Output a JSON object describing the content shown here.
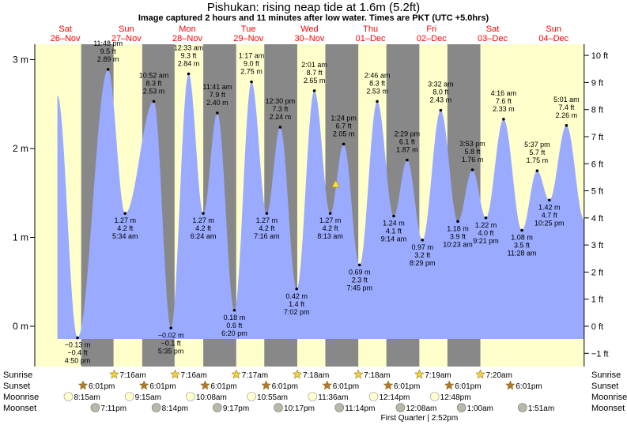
{
  "title": "Pishukan: rising  neap tide at 1.6m (5.2ft)",
  "subtitle": "Image captured 2 hours and 11 minutes after low water. Times are PKT (UTC +5.0hrs)",
  "colors": {
    "day_bg": "#ffffcc",
    "night_bg": "#888888",
    "water": "#99aaff",
    "day_label": "#ff0000",
    "marker": "#f0e040"
  },
  "chart_data": {
    "type": "area",
    "y_left_unit": "m",
    "y_right_unit": "ft",
    "y_left_ticks": [
      {
        "v": 0,
        "label": "0 m"
      },
      {
        "v": 1,
        "label": "1 m"
      },
      {
        "v": 2,
        "label": "2 m"
      },
      {
        "v": 3,
        "label": "3 m"
      }
    ],
    "y_right_ticks": [
      {
        "v": -1,
        "label": "−1 ft"
      },
      {
        "v": 0,
        "label": "0 ft"
      },
      {
        "v": 1,
        "label": "1 ft"
      },
      {
        "v": 2,
        "label": "2 ft"
      },
      {
        "v": 3,
        "label": "3 ft"
      },
      {
        "v": 4,
        "label": "4 ft"
      },
      {
        "v": 5,
        "label": "5 ft"
      },
      {
        "v": 6,
        "label": "6 ft"
      },
      {
        "v": 7,
        "label": "7 ft"
      },
      {
        "v": 8,
        "label": "8 ft"
      },
      {
        "v": 9,
        "label": "9 ft"
      },
      {
        "v": 10,
        "label": "10 ft"
      }
    ],
    "days": [
      {
        "dow": "Sat",
        "date": "26–Nov",
        "mid": 0.5
      },
      {
        "dow": "Sun",
        "date": "27–Nov",
        "mid": 1.5
      },
      {
        "dow": "Mon",
        "date": "28–Nov",
        "mid": 2.5
      },
      {
        "dow": "Tue",
        "date": "29–Nov",
        "mid": 3.5
      },
      {
        "dow": "Wed",
        "date": "30–Nov",
        "mid": 4.5
      },
      {
        "dow": "Thu",
        "date": "01–Dec",
        "mid": 5.5
      },
      {
        "dow": "Fri",
        "date": "02–Dec",
        "mid": 6.5
      },
      {
        "dow": "Sat",
        "date": "03–Dec",
        "mid": 7.5
      },
      {
        "dow": "Sun",
        "date": "04–Dec",
        "mid": 8.5
      }
    ],
    "nights": [
      [
        0.76,
        1.29
      ],
      [
        1.76,
        2.29
      ],
      [
        2.76,
        3.3
      ],
      [
        3.76,
        4.3
      ],
      [
        4.76,
        5.3
      ],
      [
        5.76,
        6.3
      ],
      [
        6.76,
        7.3
      ]
    ],
    "extremes": [
      {
        "t": 0.7,
        "m": -0.13,
        "lines": [
          "−0.13 m",
          "−0.4 ft",
          "4:50 pm"
        ],
        "pos": "below"
      },
      {
        "t": 1.2,
        "m": 2.89,
        "lines": [
          "11:48 pm",
          "9.5 ft",
          "2.89 m"
        ],
        "pos": "above"
      },
      {
        "t": 1.48,
        "m": 1.27,
        "lines": [
          "1.27 m",
          "4.2 ft",
          "5:34 am"
        ],
        "pos": "below"
      },
      {
        "t": 1.95,
        "m": 2.53,
        "lines": [
          "10:52 am",
          "8.3 ft",
          "2.53 m"
        ],
        "pos": "above"
      },
      {
        "t": 2.23,
        "m": -0.02,
        "lines": [
          "−0.02 m",
          "−0.1 ft",
          "5:35 pm"
        ],
        "pos": "below"
      },
      {
        "t": 2.52,
        "m": 2.84,
        "lines": [
          "12:33 am",
          "9.3 ft",
          "2.84 m"
        ],
        "pos": "above"
      },
      {
        "t": 2.76,
        "m": 1.27,
        "lines": [
          "1.27 m",
          "4.2 ft",
          "6:24 am"
        ],
        "pos": "below"
      },
      {
        "t": 2.99,
        "m": 2.4,
        "lines": [
          "11:41 am",
          "7.9 ft",
          "2.40 m"
        ],
        "pos": "above"
      },
      {
        "t": 3.27,
        "m": 0.18,
        "lines": [
          "0.18 m",
          "0.6 ft",
          "6:20 pm"
        ],
        "pos": "below"
      },
      {
        "t": 3.55,
        "m": 2.75,
        "lines": [
          "1:17 am",
          "9.0 ft",
          "2.75 m"
        ],
        "pos": "above"
      },
      {
        "t": 3.8,
        "m": 1.27,
        "lines": [
          "1.27 m",
          "4.2 ft",
          "7:16 am"
        ],
        "pos": "below"
      },
      {
        "t": 4.02,
        "m": 2.24,
        "lines": [
          "12:30 pm",
          "7.3 ft",
          "2.24 m"
        ],
        "pos": "above"
      },
      {
        "t": 4.29,
        "m": 0.42,
        "lines": [
          "0.42 m",
          "1.4 ft",
          "7:02 pm"
        ],
        "pos": "below"
      },
      {
        "t": 4.58,
        "m": 2.65,
        "lines": [
          "2:01 am",
          "8.7 ft",
          "2.65 m"
        ],
        "pos": "above"
      },
      {
        "t": 4.84,
        "m": 1.27,
        "lines": [
          "1.27 m",
          "4.2 ft",
          "8:13 am"
        ],
        "pos": "below"
      },
      {
        "t": 5.06,
        "m": 2.05,
        "lines": [
          "1:24 pm",
          "6.7 ft",
          "2.05 m"
        ],
        "pos": "above"
      },
      {
        "t": 5.32,
        "m": 0.69,
        "lines": [
          "0.69 m",
          "2.3 ft",
          "7:45 pm"
        ],
        "pos": "below"
      },
      {
        "t": 5.61,
        "m": 2.53,
        "lines": [
          "2:46 am",
          "8.3 ft",
          "2.53 m"
        ],
        "pos": "above"
      },
      {
        "t": 5.88,
        "m": 1.24,
        "lines": [
          "1.24 m",
          "4.1 ft",
          "9:14 am"
        ],
        "pos": "below"
      },
      {
        "t": 6.1,
        "m": 1.87,
        "lines": [
          "2:29 pm",
          "6.1 ft",
          "1.87 m"
        ],
        "pos": "above"
      },
      {
        "t": 6.35,
        "m": 0.97,
        "lines": [
          "0.97 m",
          "3.2 ft",
          "8:29 pm"
        ],
        "pos": "below"
      },
      {
        "t": 6.65,
        "m": 2.43,
        "lines": [
          "3:32 am",
          "8.0 ft",
          "2.43 m"
        ],
        "pos": "above"
      },
      {
        "t": 6.93,
        "m": 1.18,
        "lines": [
          "1.18 m",
          "3.9 ft",
          "10:23 am"
        ],
        "pos": "below"
      },
      {
        "t": 7.17,
        "m": 1.76,
        "lines": [
          "3:53 pm",
          "5.8 ft",
          "1.76 m"
        ],
        "pos": "above"
      },
      {
        "t": 7.39,
        "m": 1.22,
        "lines": [
          "1.22 m",
          "4.0 ft",
          "9:21 pm"
        ],
        "pos": "below"
      },
      {
        "t": 7.68,
        "m": 2.33,
        "lines": [
          "4:16 am",
          "7.6 ft",
          "2.33 m"
        ],
        "pos": "above"
      },
      {
        "t": 7.98,
        "m": 1.08,
        "lines": [
          "1.08 m",
          "3.5 ft",
          "11:28 am"
        ],
        "pos": "below"
      },
      {
        "t": 8.23,
        "m": 1.75,
        "lines": [
          "5:37 pm",
          "5.7 ft",
          "1.75 m"
        ],
        "pos": "above"
      },
      {
        "t": 8.43,
        "m": 1.42,
        "lines": [
          "1.42 m",
          "4.7 ft",
          "10:25 pm"
        ],
        "pos": "below"
      },
      {
        "t": 8.71,
        "m": 2.26,
        "lines": [
          "5:01 am",
          "7.4 ft",
          "2.26 m"
        ],
        "pos": "above"
      }
    ],
    "start": {
      "t": 0.37,
      "m": 2.6
    },
    "end": {
      "t": 9.0,
      "m": 1.2
    },
    "current": {
      "t": 4.93,
      "m": 1.6
    },
    "sunrise_label": "Sunrise",
    "sunset_label": "Sunset",
    "moonrise_label": "Moonrise",
    "moonset_label": "Moonset",
    "sunrises": [
      "7:16am",
      "7:16am",
      "7:17am",
      "7:18am",
      "7:18am",
      "7:19am",
      "7:20am"
    ],
    "sunsets": [
      "6:01pm",
      "6:01pm",
      "6:01pm",
      "6:01pm",
      "6:01pm",
      "6:01pm",
      "6:01pm",
      "6:01pm"
    ],
    "moonrises": [
      "8:15am",
      "9:15am",
      "10:08am",
      "10:55am",
      "11:36am",
      "12:14pm",
      "12:48pm"
    ],
    "moonsets": [
      "7:11pm",
      "8:14pm",
      "9:17pm",
      "10:17pm",
      "11:14pm",
      "12:08am",
      "1:00am",
      "1:51am"
    ],
    "moon_phase": "First Quarter | 2:52pm"
  }
}
